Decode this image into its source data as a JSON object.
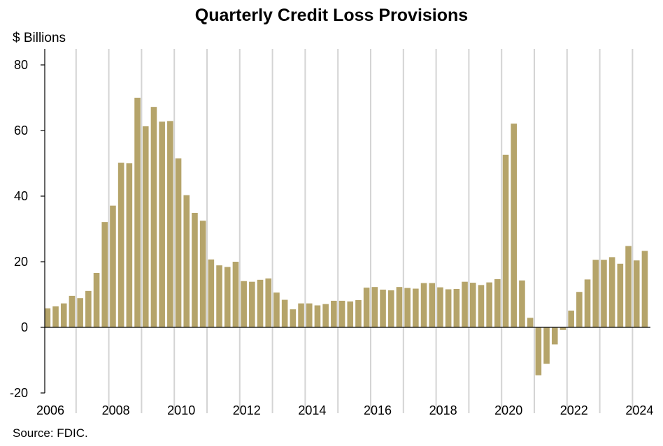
{
  "chart_data": {
    "type": "bar",
    "title": "Quarterly Credit Loss Provisions",
    "ylabel": "$ Billions",
    "xlabel": "",
    "source": "Source: FDIC.",
    "ylim": [
      -20,
      80
    ],
    "y_ticks": [
      "80",
      "60",
      "40",
      "20",
      "0",
      "-20"
    ],
    "x_ticks": [
      "2006",
      "2008",
      "2010",
      "2012",
      "2014",
      "2016",
      "2018",
      "2020",
      "2022",
      "2024"
    ],
    "grid": "vertical lines at year boundaries",
    "bar_color": "#b5a46a",
    "series": [
      {
        "values": [
          5.8,
          6.4,
          7.3,
          9.6,
          8.9,
          11.1,
          16.6,
          32.1,
          37.1,
          50.2,
          50.0,
          70.0,
          61.3,
          67.2,
          62.7,
          62.9,
          51.5,
          40.3,
          34.9,
          32.5,
          20.7,
          18.9,
          18.4,
          20.0,
          14.1,
          13.9,
          14.5,
          14.9,
          10.6,
          8.4,
          5.5,
          7.3,
          7.3,
          6.7,
          7.1,
          8.1,
          8.1,
          7.9,
          8.3,
          12.1,
          12.3,
          11.5,
          11.3,
          12.3,
          12.0,
          11.8,
          13.5,
          13.5,
          12.2,
          11.6,
          11.7,
          13.9,
          13.6,
          12.9,
          13.7,
          14.7,
          52.6,
          62.1,
          14.3,
          2.9,
          -14.6,
          -11.1,
          -5.2,
          -0.8,
          5.1,
          10.8,
          14.6,
          20.6,
          20.6,
          21.4,
          19.4,
          24.8,
          20.4,
          23.3
        ]
      }
    ]
  }
}
